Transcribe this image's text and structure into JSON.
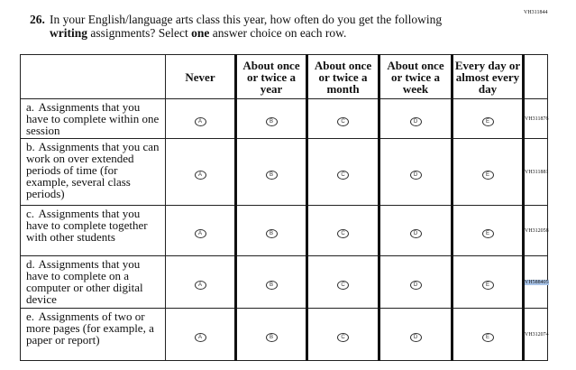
{
  "question_id": "VH311844",
  "question": {
    "number": "26.",
    "line1": "In your English/language arts class this year, how often do you get the following",
    "bold1": "writing",
    "line2": " assignments? Select ",
    "bold2": "one",
    "line3": " answer choice on each row."
  },
  "columns": [
    "Never",
    "About once or twice a year",
    "About once or twice a month",
    "About once or twice a week",
    "Every day or almost every day"
  ],
  "bubbles": [
    "A",
    "B",
    "C",
    "D",
    "E"
  ],
  "rows": [
    {
      "letter": "a.",
      "text": "Assignments that you have to complete within one session",
      "id": "VH311876",
      "highlighted": false
    },
    {
      "letter": "b.",
      "text": "Assignments that you can work on over extended periods of time (for example, several class periods)",
      "id": "VH311881",
      "highlighted": false
    },
    {
      "letter": "c.",
      "text": "Assignments that you have to complete together with other students",
      "id": "VH312058",
      "highlighted": false
    },
    {
      "letter": "d.",
      "text": "Assignments that you have to complete on a computer or other digital device",
      "id": "VH588405",
      "highlighted": true
    },
    {
      "letter": "e.",
      "text": "Assignments of two or more pages (for example, a paper or report)",
      "id": "VH312074",
      "highlighted": false
    }
  ]
}
